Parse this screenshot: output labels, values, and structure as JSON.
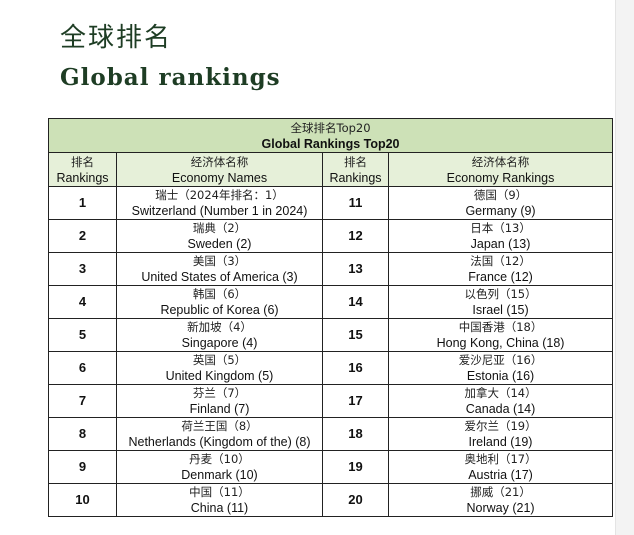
{
  "page": {
    "heading_zh": "全球排名",
    "heading_en": "Global rankings"
  },
  "table": {
    "title_zh": "全球排名Top20",
    "title_en": "Global Rankings Top20",
    "headers": [
      {
        "zh": "排名",
        "en": "Rankings"
      },
      {
        "zh": "经济体名称",
        "en": "Economy Names"
      },
      {
        "zh": "排名",
        "en": "Rankings"
      },
      {
        "zh": "经济体名称",
        "en": "Economy Rankings"
      }
    ],
    "rows": [
      {
        "left_rank": "1",
        "left_zh": "瑞士（2024年排名：1）",
        "left_en": "Switzerland (Number 1 in 2024)",
        "right_rank": "11",
        "right_zh": "德国（9）",
        "right_en": "Germany (9)"
      },
      {
        "left_rank": "2",
        "left_zh": "瑞典（2）",
        "left_en": "Sweden (2)",
        "right_rank": "12",
        "right_zh": "日本（13）",
        "right_en": "Japan (13)"
      },
      {
        "left_rank": "3",
        "left_zh": "美国（3）",
        "left_en": "United States of America (3)",
        "right_rank": "13",
        "right_zh": "法国（12）",
        "right_en": "France (12)"
      },
      {
        "left_rank": "4",
        "left_zh": "韩国（6）",
        "left_en": "Republic of Korea (6)",
        "right_rank": "14",
        "right_zh": "以色列（15）",
        "right_en": "Israel (15)"
      },
      {
        "left_rank": "5",
        "left_zh": "新加坡（4）",
        "left_en": "Singapore (4)",
        "right_rank": "15",
        "right_zh": "中国香港（18）",
        "right_en": "Hong Kong, China (18)"
      },
      {
        "left_rank": "6",
        "left_zh": "英国（5）",
        "left_en": "United Kingdom (5)",
        "right_rank": "16",
        "right_zh": "爱沙尼亚（16）",
        "right_en": "Estonia (16)"
      },
      {
        "left_rank": "7",
        "left_zh": "芬兰（7）",
        "left_en": "Finland (7)",
        "right_rank": "17",
        "right_zh": "加拿大（14）",
        "right_en": "Canada (14)"
      },
      {
        "left_rank": "8",
        "left_zh": "荷兰王国（8）",
        "left_en": "Netherlands (Kingdom of the) (8)",
        "right_rank": "18",
        "right_zh": "爱尔兰（19）",
        "right_en": "Ireland (19)"
      },
      {
        "left_rank": "9",
        "left_zh": "丹麦（10）",
        "left_en": "Denmark (10)",
        "right_rank": "19",
        "right_zh": "奥地利（17）",
        "right_en": "Austria (17)"
      },
      {
        "left_rank": "10",
        "left_zh": "中国（11）",
        "left_en": "China (11)",
        "right_rank": "20",
        "right_zh": "挪威（21）",
        "right_en": "Norway (21)"
      }
    ]
  }
}
